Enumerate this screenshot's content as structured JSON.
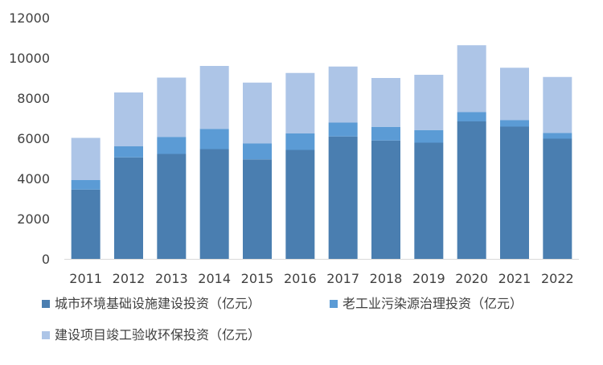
{
  "chart_data": {
    "type": "bar",
    "stacked": true,
    "categories": [
      "2011",
      "2012",
      "2013",
      "2014",
      "2015",
      "2016",
      "2017",
      "2018",
      "2019",
      "2020",
      "2021",
      "2022"
    ],
    "series": [
      {
        "name": "城市环境基础设施建设投资（亿元）",
        "color": "#4a7eb0",
        "values": [
          3450,
          5050,
          5220,
          5460,
          4950,
          5420,
          6090,
          5890,
          5780,
          6840,
          6580,
          5980
        ]
      },
      {
        "name": "老工业污染源治理投资（亿元）",
        "color": "#5b9bd5",
        "values": [
          470,
          550,
          850,
          1010,
          790,
          820,
          690,
          680,
          630,
          460,
          320,
          290
        ]
      },
      {
        "name": "建设项目竣工验收环保投资（亿元）",
        "color": "#adc5e7",
        "values": [
          2100,
          2680,
          2950,
          3130,
          3030,
          3010,
          2790,
          2430,
          2750,
          3330,
          2610,
          2780
        ]
      }
    ],
    "ylim": [
      0,
      12000
    ],
    "yticks": [
      "0",
      "2000",
      "4000",
      "6000",
      "8000",
      "10000",
      "12000"
    ],
    "grid": false,
    "legend_position": "bottom"
  }
}
